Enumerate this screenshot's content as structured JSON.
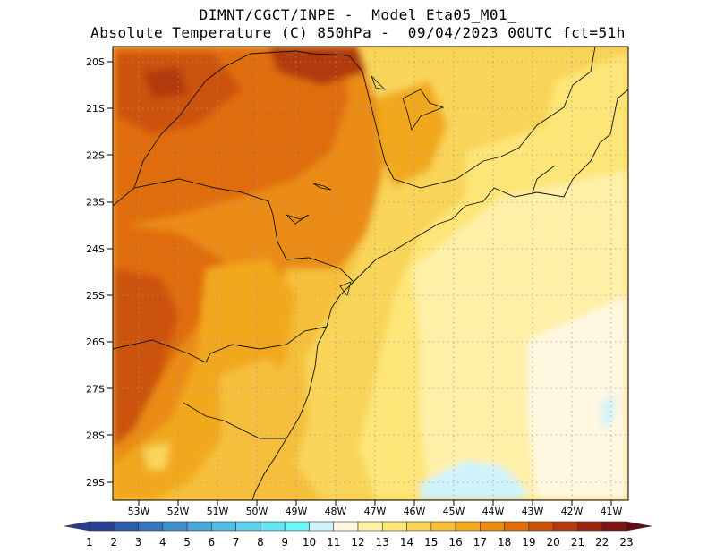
{
  "title": {
    "line1": "DIMNT/CGCT/INPE -  Model Eta05_M01_",
    "line2": "Absolute Temperature (C) 850hPa -  09/04/2023 00UTC fct=51h"
  },
  "map": {
    "lon_range": [
      -53.7,
      -40.5
    ],
    "lat_range": [
      -29.4,
      -19.9
    ],
    "lon_ticks": [
      "53W",
      "52W",
      "51W",
      "50W",
      "49W",
      "48W",
      "47W",
      "46W",
      "45W",
      "44W",
      "43W",
      "42W",
      "41W"
    ],
    "lat_ticks": [
      "20S",
      "21S",
      "22S",
      "23S",
      "24S",
      "25S",
      "26S",
      "27S",
      "28S",
      "29S"
    ],
    "grid": true
  },
  "colorbar": {
    "labels": [
      "1",
      "2",
      "3",
      "4",
      "5",
      "6",
      "7",
      "8",
      "9",
      "10",
      "11",
      "12",
      "13",
      "14",
      "15",
      "16",
      "17",
      "18",
      "19",
      "20",
      "21",
      "22",
      "23"
    ],
    "colors": [
      "#2a3f93",
      "#2f5ca8",
      "#3874ba",
      "#418dca",
      "#4aa6d6",
      "#54bce0",
      "#5fd2ea",
      "#66e5f2",
      "#6ff8fb",
      "#cff3fb",
      "#fff7e0",
      "#fff0a8",
      "#fde577",
      "#f8d458",
      "#f5bf3c",
      "#f2a81f",
      "#ea8c13",
      "#e06d0c",
      "#cc520a",
      "#b23a0c",
      "#98250f",
      "#7e1510",
      "#650a12"
    ]
  }
}
